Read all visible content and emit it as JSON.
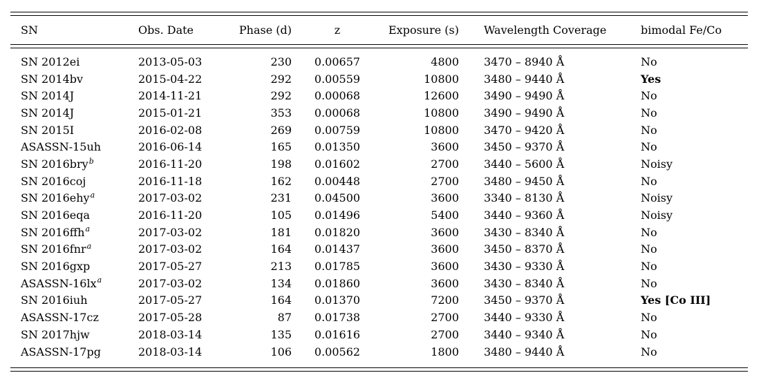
{
  "table": {
    "columns": [
      {
        "key": "sn",
        "label": "SN"
      },
      {
        "key": "obs_date",
        "label": "Obs. Date"
      },
      {
        "key": "phase",
        "label": "Phase (d)"
      },
      {
        "key": "z",
        "label": "z"
      },
      {
        "key": "exposure",
        "label": "Exposure (s)"
      },
      {
        "key": "wavelength",
        "label": "Wavelength Coverage"
      },
      {
        "key": "bimodal",
        "label": "bimodal Fe/Co"
      }
    ],
    "rows": [
      {
        "sn": "SN 2012ei",
        "sn_superscript": "",
        "obs_date": "2013-05-03",
        "phase": "230",
        "z": "0.00657",
        "exposure": "4800",
        "wavelength": "3470 – 8940 Å",
        "bimodal": "No",
        "bimodal_bold": false
      },
      {
        "sn": "SN 2014bv",
        "sn_superscript": "",
        "obs_date": "2015-04-22",
        "phase": "292",
        "z": "0.00559",
        "exposure": "10800",
        "wavelength": "3480 – 9440 Å",
        "bimodal": "Yes",
        "bimodal_bold": true
      },
      {
        "sn": "SN 2014J",
        "sn_superscript": "",
        "obs_date": "2014-11-21",
        "phase": "292",
        "z": "0.00068",
        "exposure": "12600",
        "wavelength": "3490 – 9490 Å",
        "bimodal": "No",
        "bimodal_bold": false
      },
      {
        "sn": "SN 2014J",
        "sn_superscript": "",
        "obs_date": "2015-01-21",
        "phase": "353",
        "z": "0.00068",
        "exposure": "10800",
        "wavelength": "3490 – 9490 Å",
        "bimodal": "No",
        "bimodal_bold": false
      },
      {
        "sn": "SN 2015I",
        "sn_superscript": "",
        "obs_date": "2016-02-08",
        "phase": "269",
        "z": "0.00759",
        "exposure": "10800",
        "wavelength": "3470 – 9420 Å",
        "bimodal": "No",
        "bimodal_bold": false
      },
      {
        "sn": "ASASSN-15uh",
        "sn_superscript": "",
        "obs_date": "2016-06-14",
        "phase": "165",
        "z": "0.01350",
        "exposure": "3600",
        "wavelength": "3450 – 9370 Å",
        "bimodal": "No",
        "bimodal_bold": false
      },
      {
        "sn": "SN 2016bry",
        "sn_superscript": "b",
        "obs_date": "2016-11-20",
        "phase": "198",
        "z": "0.01602",
        "exposure": "2700",
        "wavelength": "3440 – 5600 Å",
        "bimodal": "Noisy",
        "bimodal_bold": false
      },
      {
        "sn": "SN 2016coj",
        "sn_superscript": "",
        "obs_date": "2016-11-18",
        "phase": "162",
        "z": "0.00448",
        "exposure": "2700",
        "wavelength": "3480 – 9450 Å",
        "bimodal": "No",
        "bimodal_bold": false
      },
      {
        "sn": "SN 2016ehy",
        "sn_superscript": "a",
        "obs_date": "2017-03-02",
        "phase": "231",
        "z": "0.04500",
        "exposure": "3600",
        "wavelength": "3340 – 8130 Å",
        "bimodal": "Noisy",
        "bimodal_bold": false
      },
      {
        "sn": "SN 2016eqa",
        "sn_superscript": "",
        "obs_date": "2016-11-20",
        "phase": "105",
        "z": "0.01496",
        "exposure": "5400",
        "wavelength": "3440 – 9360 Å",
        "bimodal": "Noisy",
        "bimodal_bold": false
      },
      {
        "sn": "SN 2016ffh",
        "sn_superscript": "a",
        "obs_date": "2017-03-02",
        "phase": "181",
        "z": "0.01820",
        "exposure": "3600",
        "wavelength": "3430 – 8340 Å",
        "bimodal": "No",
        "bimodal_bold": false
      },
      {
        "sn": "SN 2016fnr",
        "sn_superscript": "a",
        "obs_date": "2017-03-02",
        "phase": "164",
        "z": "0.01437",
        "exposure": "3600",
        "wavelength": "3450 – 8370 Å",
        "bimodal": "No",
        "bimodal_bold": false
      },
      {
        "sn": "SN 2016gxp",
        "sn_superscript": "",
        "obs_date": "2017-05-27",
        "phase": "213",
        "z": "0.01785",
        "exposure": "3600",
        "wavelength": "3430 – 9330 Å",
        "bimodal": "No",
        "bimodal_bold": false
      },
      {
        "sn": "ASASSN-16lx",
        "sn_superscript": "a",
        "obs_date": "2017-03-02",
        "phase": "134",
        "z": "0.01860",
        "exposure": "3600",
        "wavelength": "3430 – 8340 Å",
        "bimodal": "No",
        "bimodal_bold": false
      },
      {
        "sn": "SN 2016iuh",
        "sn_superscript": "",
        "obs_date": "2017-05-27",
        "phase": "164",
        "z": "0.01370",
        "exposure": "7200",
        "wavelength": "3450 – 9370 Å",
        "bimodal": "Yes [Co III]",
        "bimodal_bold": true
      },
      {
        "sn": "ASASSN-17cz",
        "sn_superscript": "",
        "obs_date": "2017-05-28",
        "phase": "87",
        "z": "0.01738",
        "exposure": "2700",
        "wavelength": "3440 – 9330 Å",
        "bimodal": "No",
        "bimodal_bold": false
      },
      {
        "sn": "SN 2017hjw",
        "sn_superscript": "",
        "obs_date": "2018-03-14",
        "phase": "135",
        "z": "0.01616",
        "exposure": "2700",
        "wavelength": "3440 – 9340 Å",
        "bimodal": "No",
        "bimodal_bold": false
      },
      {
        "sn": "ASASSN-17pg",
        "sn_superscript": "",
        "obs_date": "2018-03-14",
        "phase": "106",
        "z": "0.00562",
        "exposure": "1800",
        "wavelength": "3480 – 9440 Å",
        "bimodal": "No",
        "bimodal_bold": false
      }
    ]
  }
}
